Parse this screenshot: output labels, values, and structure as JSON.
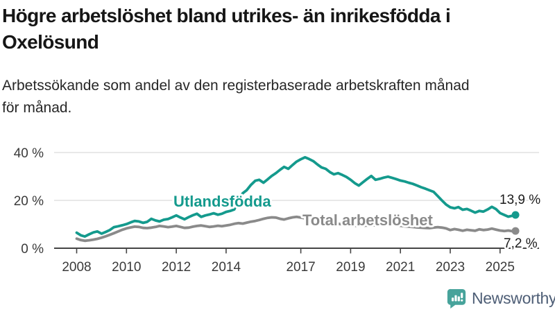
{
  "header": {
    "title_line1": "Högre arbetslöshet bland utrikes- än inrikesfödda i",
    "title_line2": "Oxelösund",
    "subtitle_line1": "Arbetssökande som andel av den registerbaserade arbetskraften månad",
    "subtitle_line2": "för månad."
  },
  "footer": {
    "brand": "Newsworthy",
    "logo_icon": "newsworthy-bar-chart-speech-bubble"
  },
  "colors": {
    "accent_teal": "#149a8d",
    "series_gray": "#8a8a8a",
    "axis": "#444444",
    "grid": "#d9d9d9",
    "tick_text": "#3a3a3a",
    "value_text": "#1a1a1a",
    "logo_icon": "#47a39b",
    "logo_text": "#4e5e76"
  },
  "chart_data": {
    "type": "line",
    "title": "Högre arbetslöshet bland utrikes- än inrikesfödda i Oxelösund",
    "subtitle": "Arbetssökande som andel av den registerbaserade arbetskraften månad för månad.",
    "unit": "%",
    "grid": "horizontal-only",
    "legend": "inline-series-labels",
    "x_axis": {
      "ticks": [
        2008,
        2010,
        2012,
        2014,
        2017,
        2019,
        2021,
        2023,
        2025
      ],
      "range": [
        2007.95,
        2026.6
      ]
    },
    "y_axis": {
      "ticks": [
        {
          "value": 0,
          "label": "0 %"
        },
        {
          "value": 20,
          "label": "20 %"
        },
        {
          "value": 40,
          "label": "40 %"
        }
      ],
      "range": [
        0,
        44
      ]
    },
    "series": [
      {
        "name": "Utlandsfödda",
        "color": "#149a8d",
        "end_label": "13,9 %",
        "end_value": 13.9,
        "points": [
          [
            2008.0,
            6.5
          ],
          [
            2008.17,
            5.4
          ],
          [
            2008.33,
            4.9
          ],
          [
            2008.5,
            5.8
          ],
          [
            2008.67,
            6.6
          ],
          [
            2008.83,
            7.0
          ],
          [
            2009.0,
            6.1
          ],
          [
            2009.17,
            6.8
          ],
          [
            2009.33,
            7.6
          ],
          [
            2009.5,
            8.8
          ],
          [
            2009.67,
            9.2
          ],
          [
            2009.83,
            9.6
          ],
          [
            2010.0,
            10.1
          ],
          [
            2010.17,
            10.8
          ],
          [
            2010.33,
            11.4
          ],
          [
            2010.5,
            11.2
          ],
          [
            2010.67,
            10.6
          ],
          [
            2010.83,
            11.0
          ],
          [
            2011.0,
            12.3
          ],
          [
            2011.17,
            11.6
          ],
          [
            2011.33,
            11.2
          ],
          [
            2011.5,
            11.9
          ],
          [
            2011.67,
            12.2
          ],
          [
            2011.83,
            12.9
          ],
          [
            2012.0,
            13.7
          ],
          [
            2012.17,
            12.8
          ],
          [
            2012.33,
            12.1
          ],
          [
            2012.5,
            13.0
          ],
          [
            2012.67,
            13.8
          ],
          [
            2012.83,
            14.4
          ],
          [
            2013.0,
            13.1
          ],
          [
            2013.17,
            13.7
          ],
          [
            2013.33,
            14.1
          ],
          [
            2013.5,
            14.6
          ],
          [
            2013.67,
            14.0
          ],
          [
            2013.83,
            14.4
          ],
          [
            2014.0,
            15.2
          ],
          [
            2014.17,
            15.6
          ],
          [
            2014.33,
            16.2
          ],
          [
            2014.5,
            20.5
          ],
          [
            2014.67,
            23.0
          ],
          [
            2014.83,
            24.3
          ],
          [
            2015.0,
            26.5
          ],
          [
            2015.17,
            28.2
          ],
          [
            2015.33,
            28.6
          ],
          [
            2015.5,
            27.4
          ],
          [
            2015.67,
            28.8
          ],
          [
            2015.83,
            30.2
          ],
          [
            2016.0,
            31.4
          ],
          [
            2016.17,
            32.8
          ],
          [
            2016.33,
            34.0
          ],
          [
            2016.5,
            33.2
          ],
          [
            2016.67,
            34.8
          ],
          [
            2016.83,
            36.2
          ],
          [
            2017.0,
            37.2
          ],
          [
            2017.17,
            38.0
          ],
          [
            2017.33,
            37.3
          ],
          [
            2017.5,
            36.4
          ],
          [
            2017.67,
            35.0
          ],
          [
            2017.83,
            33.8
          ],
          [
            2018.0,
            33.2
          ],
          [
            2018.17,
            31.8
          ],
          [
            2018.33,
            30.9
          ],
          [
            2018.5,
            31.4
          ],
          [
            2018.67,
            30.6
          ],
          [
            2018.83,
            29.8
          ],
          [
            2019.0,
            28.6
          ],
          [
            2019.17,
            27.2
          ],
          [
            2019.33,
            26.2
          ],
          [
            2019.5,
            27.6
          ],
          [
            2019.67,
            29.0
          ],
          [
            2019.83,
            30.2
          ],
          [
            2020.0,
            28.6
          ],
          [
            2020.17,
            29.0
          ],
          [
            2020.33,
            29.5
          ],
          [
            2020.5,
            29.9
          ],
          [
            2020.67,
            29.4
          ],
          [
            2020.83,
            28.9
          ],
          [
            2021.0,
            28.3
          ],
          [
            2021.17,
            27.9
          ],
          [
            2021.33,
            27.4
          ],
          [
            2021.5,
            26.9
          ],
          [
            2021.67,
            26.2
          ],
          [
            2021.83,
            25.5
          ],
          [
            2022.0,
            24.9
          ],
          [
            2022.17,
            24.2
          ],
          [
            2022.33,
            23.6
          ],
          [
            2022.5,
            21.8
          ],
          [
            2022.67,
            19.9
          ],
          [
            2022.83,
            18.3
          ],
          [
            2023.0,
            17.1
          ],
          [
            2023.17,
            16.7
          ],
          [
            2023.33,
            17.2
          ],
          [
            2023.5,
            16.1
          ],
          [
            2023.67,
            16.4
          ],
          [
            2023.83,
            15.7
          ],
          [
            2024.0,
            14.9
          ],
          [
            2024.17,
            15.6
          ],
          [
            2024.33,
            15.3
          ],
          [
            2024.5,
            16.2
          ],
          [
            2024.67,
            17.3
          ],
          [
            2024.83,
            16.4
          ],
          [
            2025.0,
            14.7
          ],
          [
            2025.17,
            13.9
          ],
          [
            2025.33,
            13.2
          ],
          [
            2025.5,
            13.6
          ],
          [
            2025.62,
            13.9
          ]
        ]
      },
      {
        "name": "Total arbetslöshet",
        "color": "#8a8a8a",
        "end_label": "7,2 %",
        "end_value": 7.2,
        "points": [
          [
            2008.0,
            4.0
          ],
          [
            2008.17,
            3.4
          ],
          [
            2008.33,
            3.1
          ],
          [
            2008.5,
            3.3
          ],
          [
            2008.67,
            3.6
          ],
          [
            2008.83,
            3.9
          ],
          [
            2009.0,
            4.4
          ],
          [
            2009.17,
            5.0
          ],
          [
            2009.33,
            5.6
          ],
          [
            2009.5,
            6.3
          ],
          [
            2009.67,
            7.0
          ],
          [
            2009.83,
            7.7
          ],
          [
            2010.0,
            8.3
          ],
          [
            2010.17,
            8.7
          ],
          [
            2010.33,
            9.0
          ],
          [
            2010.5,
            8.9
          ],
          [
            2010.67,
            8.5
          ],
          [
            2010.83,
            8.4
          ],
          [
            2011.0,
            8.6
          ],
          [
            2011.17,
            8.9
          ],
          [
            2011.33,
            9.3
          ],
          [
            2011.5,
            9.1
          ],
          [
            2011.67,
            8.8
          ],
          [
            2011.83,
            9.0
          ],
          [
            2012.0,
            9.3
          ],
          [
            2012.17,
            8.9
          ],
          [
            2012.33,
            8.5
          ],
          [
            2012.5,
            8.6
          ],
          [
            2012.67,
            9.0
          ],
          [
            2012.83,
            9.3
          ],
          [
            2013.0,
            9.5
          ],
          [
            2013.17,
            9.2
          ],
          [
            2013.33,
            8.9
          ],
          [
            2013.5,
            9.1
          ],
          [
            2013.67,
            9.4
          ],
          [
            2013.83,
            9.2
          ],
          [
            2014.0,
            9.5
          ],
          [
            2014.17,
            9.8
          ],
          [
            2014.33,
            10.2
          ],
          [
            2014.5,
            10.5
          ],
          [
            2014.67,
            10.3
          ],
          [
            2014.83,
            10.7
          ],
          [
            2015.0,
            11.1
          ],
          [
            2015.17,
            11.4
          ],
          [
            2015.33,
            11.8
          ],
          [
            2015.5,
            12.3
          ],
          [
            2015.67,
            12.7
          ],
          [
            2015.83,
            12.9
          ],
          [
            2016.0,
            12.8
          ],
          [
            2016.17,
            12.3
          ],
          [
            2016.33,
            12.0
          ],
          [
            2016.5,
            12.5
          ],
          [
            2016.67,
            12.9
          ],
          [
            2016.83,
            13.1
          ],
          [
            2017.0,
            12.8
          ],
          [
            2017.17,
            12.5
          ],
          [
            2017.33,
            12.1
          ],
          [
            2017.5,
            11.8
          ],
          [
            2017.67,
            11.5
          ],
          [
            2017.83,
            11.2
          ],
          [
            2018.0,
            11.0
          ],
          [
            2018.17,
            10.7
          ],
          [
            2018.33,
            10.4
          ],
          [
            2018.5,
            10.2
          ],
          [
            2018.67,
            10.0
          ],
          [
            2018.83,
            9.8
          ],
          [
            2019.0,
            9.6
          ],
          [
            2019.17,
            9.4
          ],
          [
            2019.33,
            9.3
          ],
          [
            2019.5,
            9.4
          ],
          [
            2019.67,
            9.5
          ],
          [
            2019.83,
            9.7
          ],
          [
            2020.0,
            9.5
          ],
          [
            2020.17,
            9.8
          ],
          [
            2020.33,
            10.1
          ],
          [
            2020.5,
            10.0
          ],
          [
            2020.67,
            9.8
          ],
          [
            2020.83,
            9.6
          ],
          [
            2021.0,
            9.4
          ],
          [
            2021.17,
            9.2
          ],
          [
            2021.33,
            9.0
          ],
          [
            2021.5,
            8.9
          ],
          [
            2021.67,
            8.7
          ],
          [
            2021.83,
            8.6
          ],
          [
            2022.0,
            8.5
          ],
          [
            2022.17,
            8.4
          ],
          [
            2022.33,
            8.6
          ],
          [
            2022.5,
            8.8
          ],
          [
            2022.67,
            8.6
          ],
          [
            2022.83,
            8.3
          ],
          [
            2023.0,
            7.6
          ],
          [
            2023.17,
            8.0
          ],
          [
            2023.33,
            7.7
          ],
          [
            2023.5,
            7.3
          ],
          [
            2023.67,
            7.7
          ],
          [
            2023.83,
            7.5
          ],
          [
            2024.0,
            7.3
          ],
          [
            2024.17,
            7.9
          ],
          [
            2024.33,
            7.6
          ],
          [
            2024.5,
            7.8
          ],
          [
            2024.67,
            8.2
          ],
          [
            2024.83,
            7.8
          ],
          [
            2025.0,
            7.4
          ],
          [
            2025.17,
            7.2
          ],
          [
            2025.33,
            7.4
          ],
          [
            2025.5,
            7.1
          ],
          [
            2025.62,
            7.2
          ]
        ]
      }
    ]
  }
}
